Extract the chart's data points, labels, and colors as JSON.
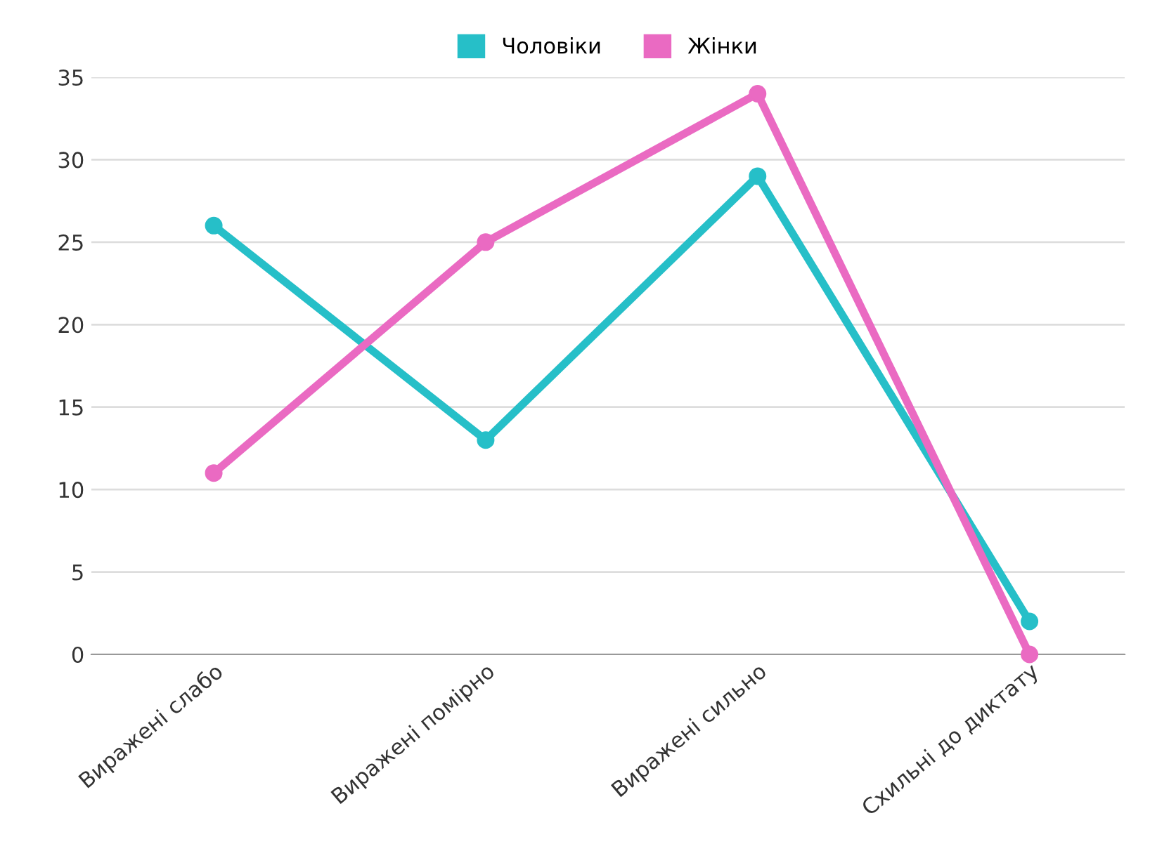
{
  "chart_data": {
    "type": "line",
    "categories": [
      "Виражені слабо",
      "Виражені помірно",
      "Виражені сильно",
      "Схильні до диктату"
    ],
    "series": [
      {
        "name": "Чоловіки",
        "color": "#26bfc8",
        "values": [
          26,
          13,
          29,
          2
        ]
      },
      {
        "name": "Жінки",
        "color": "#ea6ac2",
        "values": [
          11,
          25,
          34,
          0
        ]
      }
    ],
    "ylim": [
      0,
      35
    ],
    "yticks": [
      0,
      5,
      10,
      15,
      20,
      25,
      30,
      35
    ],
    "grid": "y",
    "legend": "top",
    "marker": "circle",
    "line_style": "solid"
  }
}
